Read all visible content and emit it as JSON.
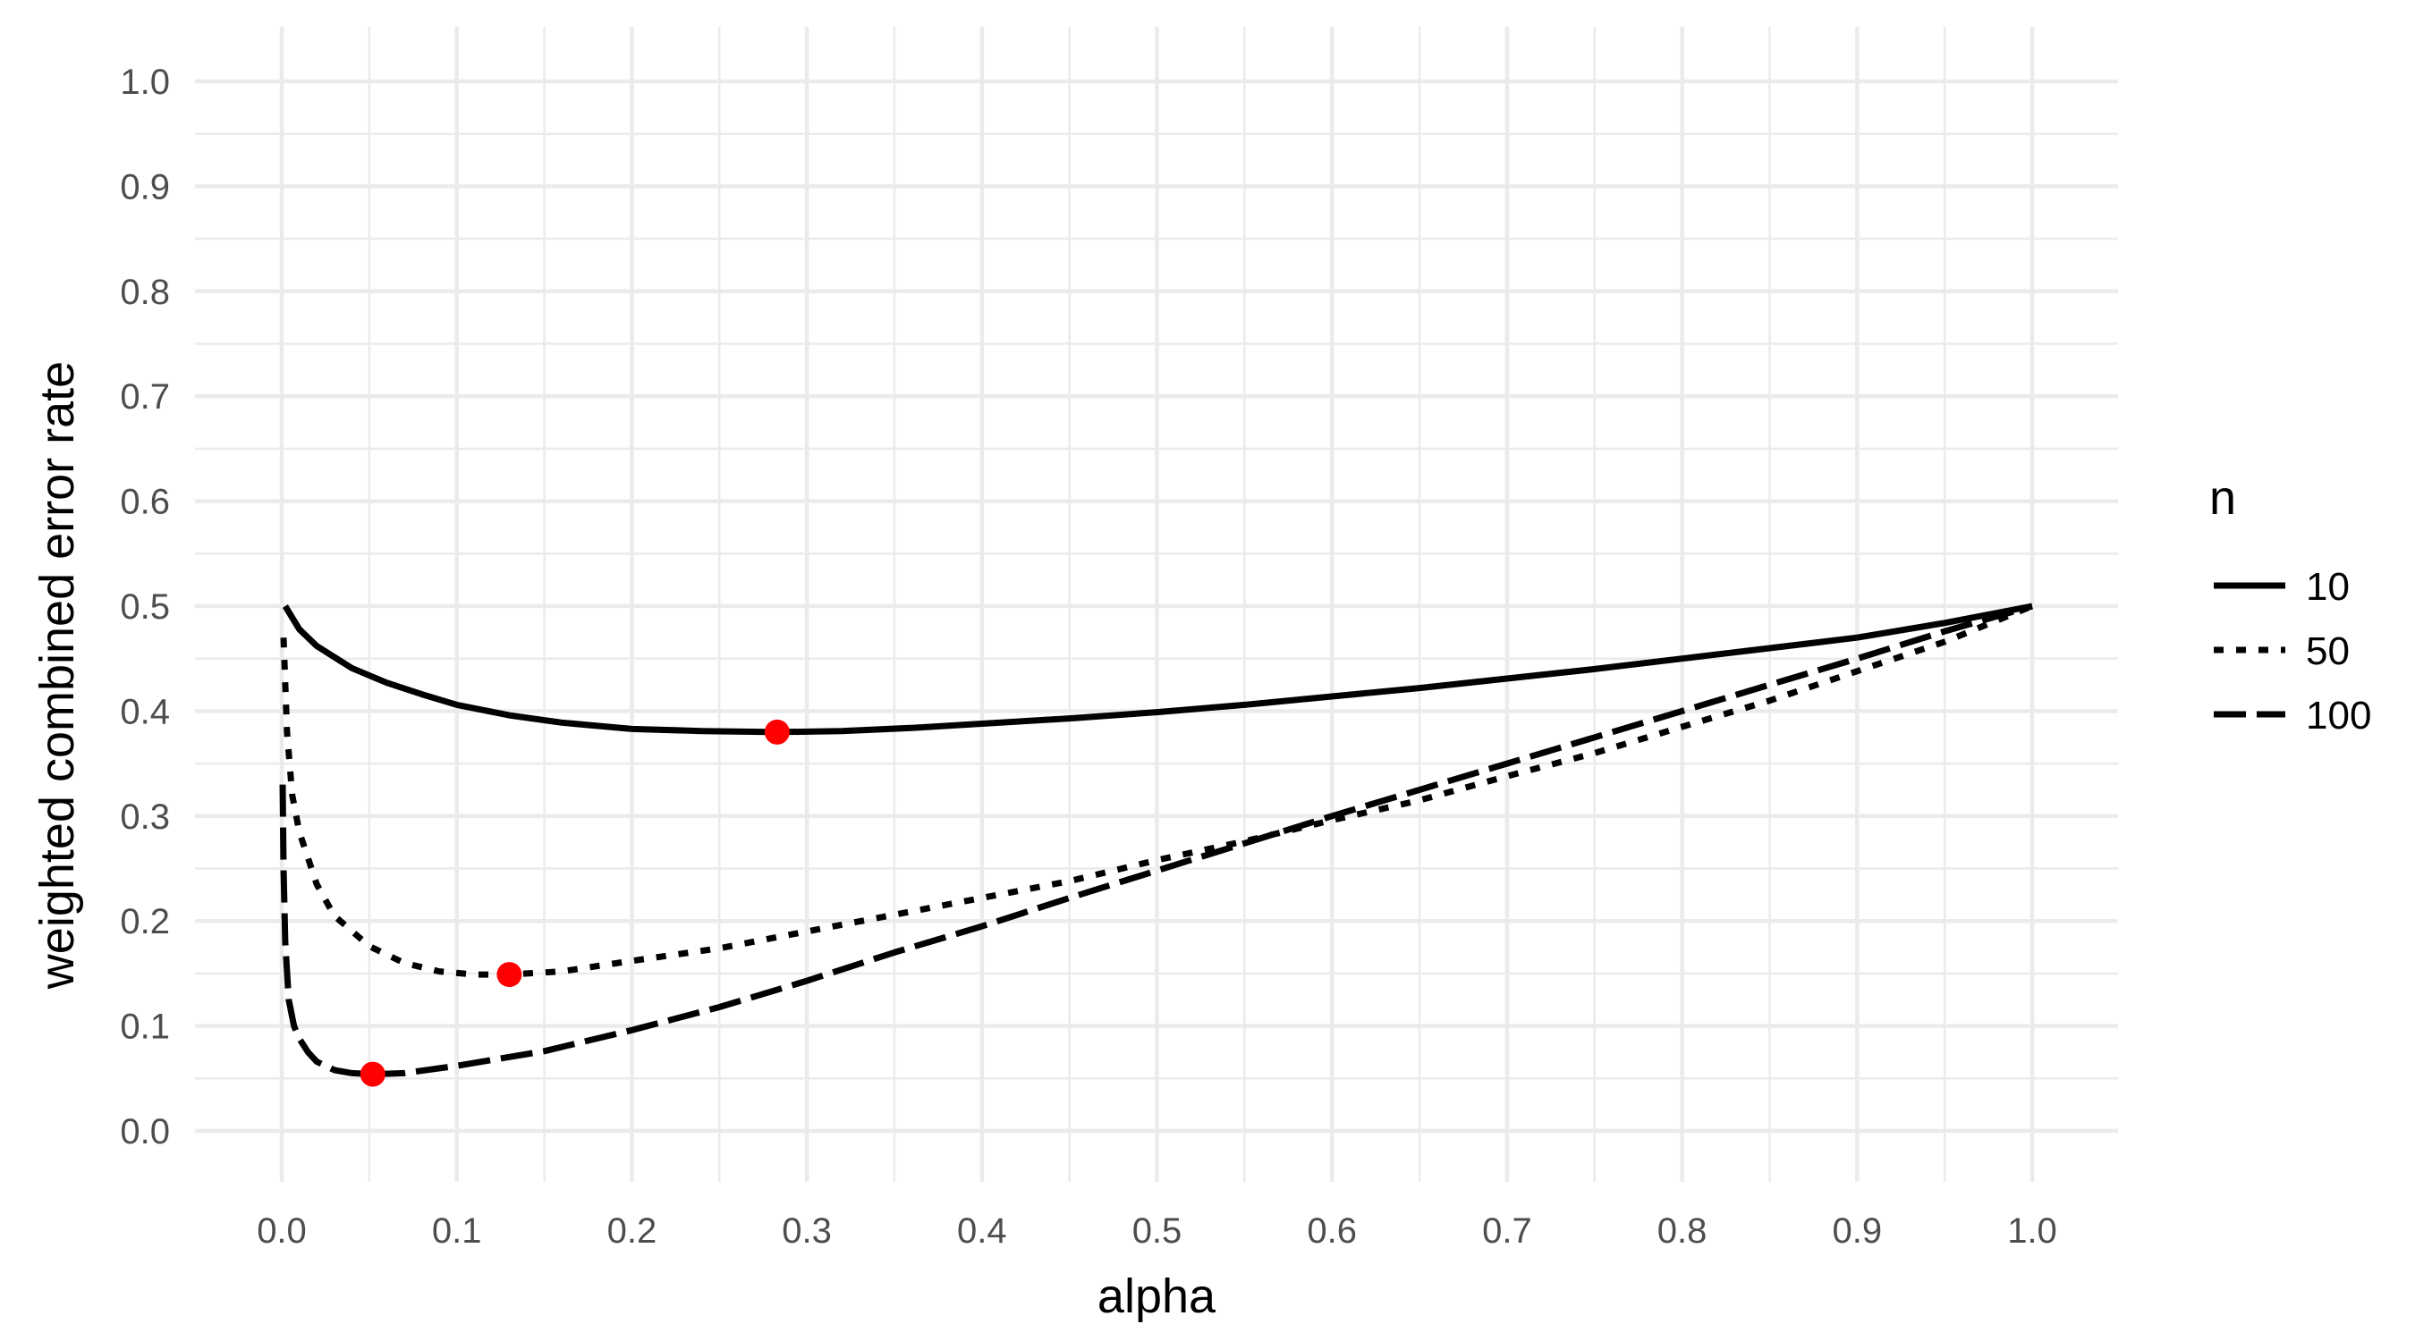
{
  "chart_data": {
    "type": "line",
    "title": "",
    "xlabel": "alpha",
    "ylabel": "weighted combined error rate",
    "xlim": [
      0,
      1
    ],
    "ylim": [
      0,
      1
    ],
    "x_ticks": [
      "0.0",
      "0.1",
      "0.2",
      "0.3",
      "0.4",
      "0.5",
      "0.6",
      "0.7",
      "0.8",
      "0.9",
      "1.0"
    ],
    "y_ticks": [
      "0.0",
      "0.1",
      "0.2",
      "0.3",
      "0.4",
      "0.5",
      "0.6",
      "0.7",
      "0.8",
      "0.9",
      "1.0"
    ],
    "grid": true,
    "legend": {
      "title": "n",
      "placement": "right"
    },
    "series": [
      {
        "name": "10",
        "linestyle": "solid",
        "x": [
          0.002,
          0.01,
          0.02,
          0.04,
          0.06,
          0.08,
          0.1,
          0.13,
          0.16,
          0.2,
          0.24,
          0.283,
          0.32,
          0.36,
          0.4,
          0.45,
          0.5,
          0.55,
          0.6,
          0.65,
          0.7,
          0.75,
          0.8,
          0.85,
          0.9,
          0.95,
          1.0
        ],
        "y": [
          0.5,
          0.478,
          0.462,
          0.441,
          0.427,
          0.416,
          0.406,
          0.396,
          0.389,
          0.383,
          0.381,
          0.38,
          0.381,
          0.384,
          0.388,
          0.393,
          0.399,
          0.406,
          0.414,
          0.422,
          0.431,
          0.44,
          0.45,
          0.46,
          0.47,
          0.484,
          0.5
        ]
      },
      {
        "name": "50",
        "linestyle": "dotted",
        "x": [
          0.001,
          0.003,
          0.006,
          0.01,
          0.02,
          0.03,
          0.05,
          0.07,
          0.09,
          0.11,
          0.13,
          0.16,
          0.2,
          0.25,
          0.3,
          0.35,
          0.4,
          0.45,
          0.5,
          0.55,
          0.6,
          0.65,
          0.7,
          0.75,
          0.8,
          0.85,
          0.9,
          0.95,
          1.0
        ],
        "y": [
          0.47,
          0.38,
          0.32,
          0.285,
          0.235,
          0.205,
          0.176,
          0.16,
          0.152,
          0.149,
          0.149,
          0.152,
          0.162,
          0.174,
          0.19,
          0.206,
          0.222,
          0.238,
          0.258,
          0.276,
          0.296,
          0.315,
          0.338,
          0.36,
          0.385,
          0.41,
          0.438,
          0.466,
          0.5
        ]
      },
      {
        "name": "100",
        "linestyle": "dashed",
        "x": [
          0.0005,
          0.001,
          0.002,
          0.004,
          0.007,
          0.01,
          0.015,
          0.02,
          0.03,
          0.04,
          0.052,
          0.07,
          0.1,
          0.15,
          0.2,
          0.25,
          0.3,
          0.35,
          0.4,
          0.45,
          0.5,
          0.55,
          0.6,
          0.65,
          0.7,
          0.75,
          0.8,
          0.85,
          0.9,
          0.95,
          1.0
        ],
        "y": [
          0.33,
          0.25,
          0.18,
          0.125,
          0.1,
          0.088,
          0.075,
          0.066,
          0.058,
          0.055,
          0.054,
          0.055,
          0.062,
          0.076,
          0.096,
          0.118,
          0.143,
          0.17,
          0.195,
          0.222,
          0.248,
          0.274,
          0.3,
          0.325,
          0.35,
          0.375,
          0.4,
          0.425,
          0.45,
          0.476,
          0.5
        ]
      }
    ],
    "minima": [
      {
        "series": "10",
        "x": 0.283,
        "y": 0.38
      },
      {
        "series": "50",
        "x": 0.13,
        "y": 0.149
      },
      {
        "series": "100",
        "x": 0.052,
        "y": 0.054
      }
    ],
    "colors": {
      "lines": "#000000",
      "minima": "#ff0000",
      "grid": "#ebebeb"
    }
  }
}
